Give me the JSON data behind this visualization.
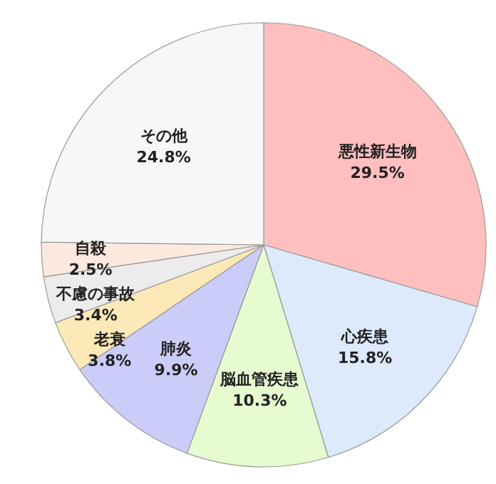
{
  "chart_data": {
    "type": "pie",
    "categories": [
      "悪性新生物",
      "心疾患",
      "脳血管疾患",
      "肺炎",
      "老衰",
      "不慮の事故",
      "自殺",
      "その他"
    ],
    "values": [
      29.5,
      15.8,
      10.3,
      9.9,
      3.8,
      3.4,
      2.5,
      24.8
    ],
    "colors": [
      "#ffbfbf",
      "#ddeafc",
      "#e6fbd0",
      "#ccccf8",
      "#fde9b8",
      "#ececec",
      "#fde9de",
      "#f7f7f7"
    ],
    "value_labels": [
      "29.5%",
      "15.8%",
      "10.3%",
      "9.9%",
      "3.8%",
      "3.4%",
      "2.5%",
      "24.8%"
    ]
  }
}
